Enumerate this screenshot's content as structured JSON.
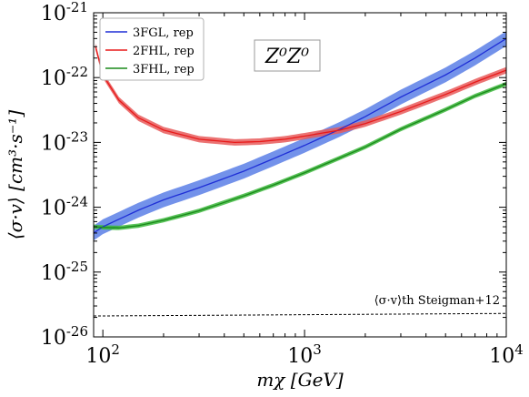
{
  "chart_data": {
    "type": "line",
    "title": "",
    "panel_label": "Z⁰Z⁰",
    "xlabel": "mχ [GeV]",
    "ylabel": "⟨σ·v⟩ [cm³·s⁻¹]",
    "xscale": "log",
    "yscale": "log",
    "xlim": [
      90,
      10000
    ],
    "ylim": [
      1e-26,
      1e-21
    ],
    "x_ticks": [
      {
        "value": 100,
        "label": "10²"
      },
      {
        "value": 1000,
        "label": "10³"
      },
      {
        "value": 10000,
        "label": "10⁴"
      }
    ],
    "y_ticks": [
      {
        "value": 1e-26,
        "label": "10⁻²⁶"
      },
      {
        "value": 1e-25,
        "label": "10⁻²⁵"
      },
      {
        "value": 1e-24,
        "label": "10⁻²⁴"
      },
      {
        "value": 1e-23,
        "label": "10⁻²³"
      },
      {
        "value": 1e-22,
        "label": "10⁻²²"
      },
      {
        "value": 1e-21,
        "label": "10⁻²¹"
      }
    ],
    "legend_position": "top-left",
    "series": [
      {
        "name": "3FGL, rep",
        "color": "#1f2fd6",
        "band_color": "#5b7fe6",
        "x": [
          90,
          100,
          150,
          200,
          300,
          500,
          700,
          1000,
          1500,
          2000,
          3000,
          5000,
          7000,
          10000
        ],
        "y": [
          4e-25,
          5e-25,
          9e-25,
          1.3e-24,
          2e-24,
          3.6e-24,
          5.6e-24,
          9e-24,
          1.6e-23,
          2.5e-23,
          5e-23,
          1.1e-22,
          2e-22,
          4e-22
        ],
        "band_factor": 1.3
      },
      {
        "name": "2FHL, rep",
        "color": "#e81a1a",
        "band_color": "#e85a5a",
        "x": [
          92,
          100,
          120,
          150,
          200,
          300,
          450,
          600,
          800,
          1000,
          1500,
          2000,
          3000,
          5000,
          7000,
          10000
        ],
        "y": [
          3e-22,
          1.1e-22,
          4.5e-23,
          2.4e-23,
          1.55e-23,
          1.12e-23,
          1e-23,
          1.03e-23,
          1.12e-23,
          1.25e-23,
          1.55e-23,
          1.95e-23,
          3e-23,
          5.5e-23,
          8.5e-23,
          1.3e-22
        ],
        "band_factor": 1.12
      },
      {
        "name": "3FHL, rep",
        "color": "#1a8a1a",
        "band_color": "#3cb83c",
        "x": [
          90,
          100,
          120,
          150,
          200,
          300,
          500,
          700,
          1000,
          1500,
          2000,
          3000,
          5000,
          7000,
          10000
        ],
        "y": [
          5e-25,
          4.9e-25,
          4.8e-25,
          5.2e-25,
          6.3e-25,
          8.8e-25,
          1.5e-24,
          2.2e-24,
          3.4e-24,
          5.8e-24,
          8.5e-24,
          1.6e-23,
          3.2e-23,
          5.2e-23,
          8e-23
        ],
        "band_factor": 1.08
      }
    ],
    "reference_line": {
      "label": "⟨σ·v⟩th Steigman+12",
      "color": "#000000",
      "style": "dashed",
      "x": [
        90,
        10000
      ],
      "y": [
        2.1e-26,
        2.3e-26
      ]
    }
  }
}
